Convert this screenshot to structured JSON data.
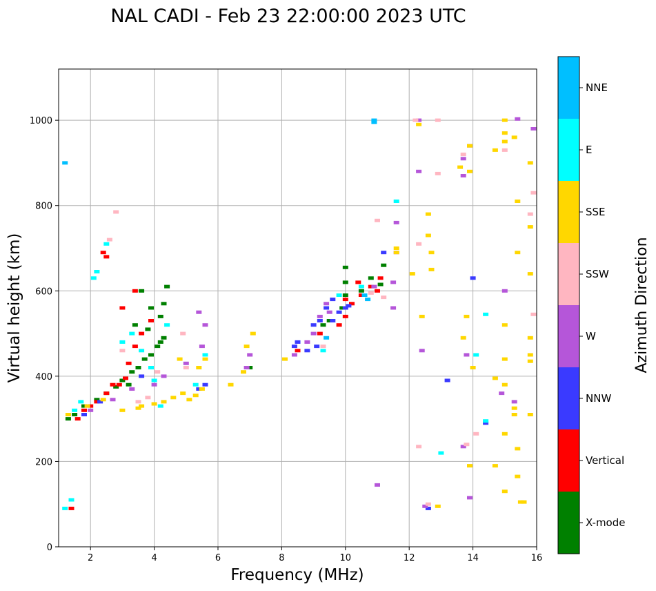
{
  "chart_data": {
    "type": "scatter",
    "title": "NAL CADI - Feb 23 22:00:00 2023 UTC",
    "xlabel": "Frequency (MHz)",
    "ylabel": "Virtual height (km)",
    "xlim": [
      1,
      16
    ],
    "ylim": [
      0,
      1120
    ],
    "xticks": [
      2,
      4,
      6,
      8,
      10,
      12,
      14,
      16
    ],
    "yticks": [
      0,
      200,
      400,
      600,
      800,
      1000
    ],
    "grid": true,
    "colorbar": {
      "title": "Azimuth Direction",
      "categories": [
        {
          "name": "X-mode",
          "color": "#008000"
        },
        {
          "name": "Vertical",
          "color": "#ff0000"
        },
        {
          "name": "NNW",
          "color": "#3a3aff"
        },
        {
          "name": "W",
          "color": "#b556d9"
        },
        {
          "name": "SSW",
          "color": "#ffb6c1"
        },
        {
          "name": "SSE",
          "color": "#ffd700"
        },
        {
          "name": "E",
          "color": "#00ffff"
        },
        {
          "name": "NNE",
          "color": "#00bfff"
        }
      ]
    },
    "series": [
      {
        "name": "X-mode",
        "points": [
          [
            1.3,
            300
          ],
          [
            1.5,
            310
          ],
          [
            1.8,
            330
          ],
          [
            2.2,
            345
          ],
          [
            2.5,
            360
          ],
          [
            2.8,
            375
          ],
          [
            3.0,
            390
          ],
          [
            3.3,
            410
          ],
          [
            3.5,
            420
          ],
          [
            3.7,
            440
          ],
          [
            3.9,
            450
          ],
          [
            4.1,
            470
          ],
          [
            4.2,
            480
          ],
          [
            4.3,
            490
          ],
          [
            4.2,
            540
          ],
          [
            4.3,
            570
          ],
          [
            4.4,
            610
          ],
          [
            3.6,
            600
          ],
          [
            3.8,
            510
          ],
          [
            3.2,
            380
          ],
          [
            7.0,
            420
          ],
          [
            9.3,
            520
          ],
          [
            9.5,
            530
          ],
          [
            9.9,
            560
          ],
          [
            10.0,
            590
          ],
          [
            10.0,
            620
          ],
          [
            10.0,
            655
          ],
          [
            10.5,
            600
          ],
          [
            10.8,
            630
          ],
          [
            11.1,
            615
          ],
          [
            11.2,
            660
          ],
          [
            3.4,
            520
          ],
          [
            3.9,
            560
          ]
        ]
      },
      {
        "name": "Vertical",
        "points": [
          [
            1.4,
            90
          ],
          [
            1.6,
            300
          ],
          [
            1.8,
            320
          ],
          [
            2.0,
            330
          ],
          [
            2.2,
            340
          ],
          [
            2.5,
            360
          ],
          [
            2.7,
            380
          ],
          [
            2.9,
            380
          ],
          [
            3.1,
            395
          ],
          [
            3.2,
            430
          ],
          [
            3.4,
            470
          ],
          [
            3.6,
            500
          ],
          [
            3.0,
            560
          ],
          [
            3.4,
            600
          ],
          [
            2.4,
            690
          ],
          [
            2.5,
            680
          ],
          [
            8.5,
            460
          ],
          [
            9.2,
            500
          ],
          [
            9.8,
            520
          ],
          [
            10.0,
            540
          ],
          [
            10.0,
            580
          ],
          [
            10.2,
            570
          ],
          [
            10.5,
            590
          ],
          [
            10.8,
            610
          ],
          [
            11.0,
            600
          ],
          [
            11.1,
            630
          ],
          [
            10.4,
            620
          ],
          [
            3.9,
            530
          ]
        ]
      },
      {
        "name": "NNW",
        "points": [
          [
            1.8,
            310
          ],
          [
            2.3,
            340
          ],
          [
            3.6,
            400
          ],
          [
            5.6,
            380
          ],
          [
            5.4,
            370
          ],
          [
            8.4,
            470
          ],
          [
            8.5,
            480
          ],
          [
            8.8,
            460
          ],
          [
            9.0,
            520
          ],
          [
            9.1,
            470
          ],
          [
            9.2,
            530
          ],
          [
            9.4,
            560
          ],
          [
            9.6,
            580
          ],
          [
            9.6,
            530
          ],
          [
            9.8,
            550
          ],
          [
            10.0,
            560
          ],
          [
            10.1,
            565
          ],
          [
            10.6,
            590
          ],
          [
            12.6,
            90
          ],
          [
            13.2,
            390
          ],
          [
            14.0,
            630
          ],
          [
            14.4,
            290
          ],
          [
            11.2,
            690
          ]
        ]
      },
      {
        "name": "W",
        "points": [
          [
            2.0,
            320
          ],
          [
            2.7,
            345
          ],
          [
            3.3,
            370
          ],
          [
            4.0,
            380
          ],
          [
            4.3,
            400
          ],
          [
            5.0,
            430
          ],
          [
            5.5,
            470
          ],
          [
            5.6,
            520
          ],
          [
            5.4,
            550
          ],
          [
            6.9,
            420
          ],
          [
            7.0,
            450
          ],
          [
            8.4,
            450
          ],
          [
            8.8,
            480
          ],
          [
            9.0,
            500
          ],
          [
            9.2,
            540
          ],
          [
            9.4,
            570
          ],
          [
            9.5,
            550
          ],
          [
            10.9,
            610
          ],
          [
            11.0,
            145
          ],
          [
            11.5,
            560
          ],
          [
            11.5,
            620
          ],
          [
            11.6,
            760
          ],
          [
            11.6,
            690
          ],
          [
            12.3,
            1000
          ],
          [
            12.3,
            880
          ],
          [
            12.4,
            460
          ],
          [
            12.5,
            95
          ],
          [
            13.7,
            910
          ],
          [
            13.7,
            870
          ],
          [
            13.8,
            450
          ],
          [
            13.9,
            940
          ],
          [
            13.9,
            115
          ],
          [
            13.7,
            235
          ],
          [
            14.9,
            360
          ],
          [
            15.0,
            600
          ],
          [
            15.3,
            340
          ],
          [
            15.4,
            1003
          ],
          [
            15.9,
            980
          ]
        ]
      },
      {
        "name": "SSW",
        "points": [
          [
            2.6,
            720
          ],
          [
            2.8,
            785
          ],
          [
            3.0,
            460
          ],
          [
            3.5,
            340
          ],
          [
            3.8,
            350
          ],
          [
            4.1,
            410
          ],
          [
            4.9,
            500
          ],
          [
            5.0,
            420
          ],
          [
            9.3,
            470
          ],
          [
            10.8,
            595
          ],
          [
            11.0,
            765
          ],
          [
            11.2,
            585
          ],
          [
            12.2,
            1000
          ],
          [
            12.3,
            710
          ],
          [
            12.3,
            235
          ],
          [
            12.6,
            100
          ],
          [
            12.9,
            1000
          ],
          [
            12.9,
            875
          ],
          [
            13.7,
            920
          ],
          [
            13.8,
            240
          ],
          [
            14.1,
            265
          ],
          [
            15.0,
            930
          ],
          [
            15.9,
            830
          ],
          [
            15.9,
            545
          ],
          [
            15.8,
            780
          ]
        ]
      },
      {
        "name": "SSE",
        "points": [
          [
            1.3,
            310
          ],
          [
            1.9,
            330
          ],
          [
            2.4,
            345
          ],
          [
            3.0,
            320
          ],
          [
            3.5,
            325
          ],
          [
            3.6,
            330
          ],
          [
            4.0,
            335
          ],
          [
            4.3,
            340
          ],
          [
            4.6,
            350
          ],
          [
            4.9,
            360
          ],
          [
            5.1,
            345
          ],
          [
            5.3,
            355
          ],
          [
            5.5,
            370
          ],
          [
            5.4,
            420
          ],
          [
            5.6,
            440
          ],
          [
            4.8,
            440
          ],
          [
            6.4,
            380
          ],
          [
            6.8,
            410
          ],
          [
            6.9,
            470
          ],
          [
            7.1,
            500
          ],
          [
            8.1,
            440
          ],
          [
            11.6,
            690
          ],
          [
            11.6,
            700
          ],
          [
            12.1,
            640
          ],
          [
            12.3,
            990
          ],
          [
            12.4,
            540
          ],
          [
            12.6,
            780
          ],
          [
            12.6,
            730
          ],
          [
            12.7,
            690
          ],
          [
            12.7,
            650
          ],
          [
            12.9,
            95
          ],
          [
            13.6,
            890
          ],
          [
            13.7,
            490
          ],
          [
            13.8,
            540
          ],
          [
            13.9,
            190
          ],
          [
            13.9,
            940
          ],
          [
            13.9,
            880
          ],
          [
            14.0,
            420
          ],
          [
            14.7,
            930
          ],
          [
            14.7,
            395
          ],
          [
            14.7,
            190
          ],
          [
            15.0,
            1000
          ],
          [
            15.0,
            970
          ],
          [
            15.0,
            950
          ],
          [
            15.0,
            520
          ],
          [
            15.0,
            440
          ],
          [
            15.0,
            380
          ],
          [
            15.0,
            265
          ],
          [
            15.0,
            130
          ],
          [
            15.3,
            960
          ],
          [
            15.4,
            810
          ],
          [
            15.4,
            690
          ],
          [
            15.3,
            325
          ],
          [
            15.3,
            310
          ],
          [
            15.4,
            230
          ],
          [
            15.4,
            165
          ],
          [
            15.5,
            105
          ],
          [
            15.8,
            900
          ],
          [
            15.8,
            750
          ],
          [
            15.8,
            640
          ],
          [
            15.8,
            490
          ],
          [
            15.8,
            450
          ],
          [
            15.8,
            435
          ],
          [
            15.8,
            310
          ],
          [
            15.6,
            105
          ]
        ]
      },
      {
        "name": "E",
        "points": [
          [
            1.2,
            90
          ],
          [
            1.4,
            110
          ],
          [
            1.5,
            320
          ],
          [
            1.7,
            340
          ],
          [
            2.1,
            630
          ],
          [
            2.2,
            645
          ],
          [
            2.5,
            710
          ],
          [
            3.0,
            480
          ],
          [
            3.3,
            500
          ],
          [
            3.6,
            460
          ],
          [
            3.9,
            420
          ],
          [
            4.0,
            390
          ],
          [
            4.2,
            330
          ],
          [
            4.4,
            520
          ],
          [
            5.3,
            380
          ],
          [
            5.6,
            450
          ],
          [
            9.3,
            460
          ],
          [
            9.8,
            590
          ],
          [
            10.5,
            610
          ],
          [
            11.6,
            810
          ],
          [
            13.0,
            220
          ],
          [
            14.1,
            450
          ],
          [
            14.4,
            545
          ],
          [
            14.4,
            295
          ]
        ]
      },
      {
        "name": "NNE",
        "points": [
          [
            1.2,
            900
          ],
          [
            10.9,
            1000
          ],
          [
            10.9,
            995
          ],
          [
            10.7,
            580
          ],
          [
            10.6,
            590
          ],
          [
            9.4,
            490
          ]
        ]
      }
    ]
  }
}
